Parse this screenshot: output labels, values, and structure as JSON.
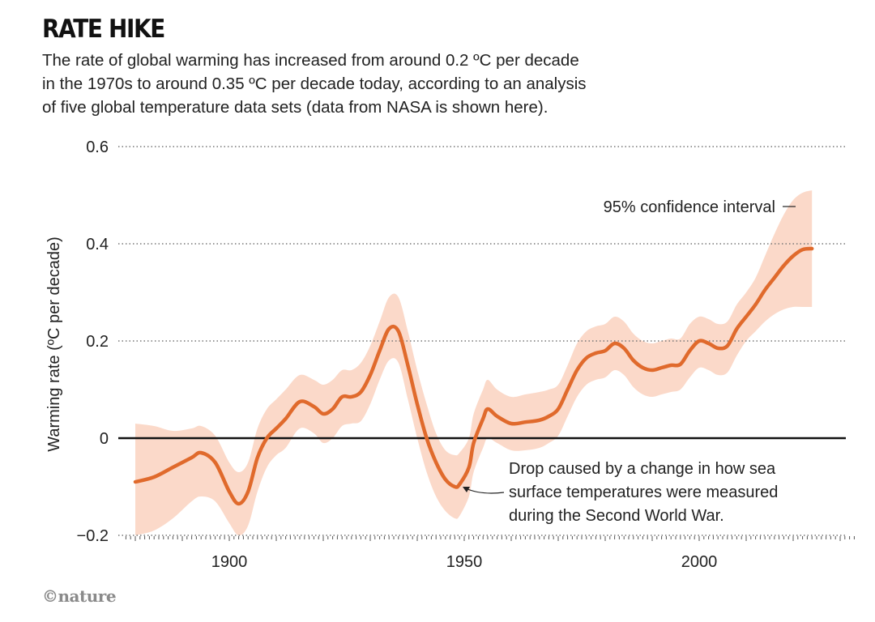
{
  "header": {
    "title": "RATE HIKE",
    "subtitle_lines": [
      "The rate of global warming has increased from around 0.2 ºC per decade",
      "in the 1970s to around 0.35 ºC per decade today, according to an analysis",
      "of five global temperature data sets (data from NASA is shown here)."
    ]
  },
  "footer": {
    "credit": "©nature"
  },
  "colors": {
    "line": "#e06a2c",
    "band": "#fbd9c9",
    "zero_line": "#111111",
    "grid": "#777777",
    "text": "#222222"
  },
  "chart_data": {
    "type": "line",
    "title": "RATE HIKE",
    "ylabel": "Warming rate (ºC per decade)",
    "xlabel": "",
    "xlim": [
      1880,
      2034
    ],
    "ylim": [
      -0.2,
      0.6
    ],
    "xticks": [
      1900,
      1950,
      2000
    ],
    "yticks": [
      -0.2,
      0,
      0.2,
      0.4,
      0.6
    ],
    "ytick_labels": [
      "−0.2",
      "0",
      "0.2",
      "0.4",
      "0.6"
    ],
    "grid": "horizontal dotted",
    "series": [
      {
        "x": [
          1880,
          1884,
          1888,
          1892,
          1894,
          1897,
          1900,
          1902,
          1904,
          1906,
          1908,
          1910,
          1912,
          1915,
          1918,
          1920,
          1922,
          1924,
          1926,
          1928,
          1930,
          1932,
          1934,
          1936,
          1938,
          1940,
          1942,
          1944,
          1946,
          1948,
          1949,
          1951,
          1952,
          1954,
          1955,
          1957,
          1960,
          1963,
          1966,
          1968,
          1970,
          1972,
          1974,
          1976,
          1978,
          1980,
          1982,
          1984,
          1986,
          1988,
          1990,
          1992,
          1994,
          1996,
          1998,
          2000,
          2002,
          2004,
          2006,
          2008,
          2010,
          2012,
          2014,
          2016,
          2018,
          2020,
          2022,
          2024
        ],
        "values": [
          -0.09,
          -0.08,
          -0.06,
          -0.04,
          -0.03,
          -0.05,
          -0.11,
          -0.135,
          -0.11,
          -0.04,
          0.0,
          0.02,
          0.04,
          0.075,
          0.065,
          0.05,
          0.06,
          0.085,
          0.085,
          0.095,
          0.13,
          0.18,
          0.225,
          0.22,
          0.15,
          0.07,
          0.0,
          -0.05,
          -0.085,
          -0.1,
          -0.095,
          -0.06,
          -0.01,
          0.04,
          0.06,
          0.045,
          0.03,
          0.033,
          0.037,
          0.045,
          0.06,
          0.1,
          0.14,
          0.165,
          0.175,
          0.18,
          0.195,
          0.185,
          0.16,
          0.145,
          0.14,
          0.145,
          0.15,
          0.152,
          0.18,
          0.2,
          0.195,
          0.185,
          0.19,
          0.225,
          0.25,
          0.275,
          0.305,
          0.33,
          0.355,
          0.375,
          0.388,
          0.39
        ]
      }
    ],
    "confidence_band": {
      "label": "95% confidence interval",
      "x": [
        1880,
        1884,
        1888,
        1892,
        1894,
        1897,
        1900,
        1902,
        1904,
        1906,
        1908,
        1910,
        1912,
        1915,
        1918,
        1920,
        1922,
        1924,
        1926,
        1928,
        1930,
        1932,
        1934,
        1936,
        1938,
        1940,
        1942,
        1944,
        1946,
        1948,
        1949,
        1951,
        1952,
        1954,
        1955,
        1957,
        1960,
        1963,
        1966,
        1968,
        1970,
        1972,
        1974,
        1976,
        1978,
        1980,
        1982,
        1984,
        1986,
        1988,
        1990,
        1992,
        1994,
        1996,
        1998,
        2000,
        2002,
        2004,
        2006,
        2008,
        2010,
        2012,
        2014,
        2016,
        2018,
        2020,
        2022,
        2024
      ],
      "upper": [
        0.03,
        0.025,
        0.015,
        0.02,
        0.025,
        0.005,
        -0.05,
        -0.07,
        -0.05,
        0.02,
        0.06,
        0.08,
        0.1,
        0.13,
        0.12,
        0.11,
        0.12,
        0.14,
        0.14,
        0.155,
        0.19,
        0.24,
        0.29,
        0.29,
        0.22,
        0.14,
        0.07,
        0.01,
        -0.025,
        -0.035,
        -0.03,
        0.0,
        0.05,
        0.1,
        0.12,
        0.1,
        0.085,
        0.09,
        0.095,
        0.1,
        0.11,
        0.15,
        0.195,
        0.22,
        0.23,
        0.235,
        0.25,
        0.24,
        0.215,
        0.2,
        0.195,
        0.2,
        0.205,
        0.205,
        0.235,
        0.25,
        0.245,
        0.235,
        0.24,
        0.275,
        0.3,
        0.33,
        0.375,
        0.42,
        0.46,
        0.49,
        0.505,
        0.51
      ],
      "lower": [
        -0.2,
        -0.19,
        -0.165,
        -0.13,
        -0.12,
        -0.13,
        -0.175,
        -0.2,
        -0.18,
        -0.11,
        -0.06,
        -0.035,
        -0.02,
        0.02,
        0.01,
        -0.01,
        0.0,
        0.025,
        0.03,
        0.035,
        0.07,
        0.12,
        0.16,
        0.155,
        0.08,
        0.0,
        -0.07,
        -0.12,
        -0.15,
        -0.165,
        -0.16,
        -0.12,
        -0.07,
        -0.02,
        0.0,
        -0.01,
        -0.025,
        -0.025,
        -0.02,
        -0.01,
        0.005,
        0.045,
        0.085,
        0.11,
        0.12,
        0.125,
        0.14,
        0.13,
        0.105,
        0.09,
        0.085,
        0.09,
        0.095,
        0.1,
        0.125,
        0.145,
        0.14,
        0.13,
        0.135,
        0.17,
        0.2,
        0.22,
        0.24,
        0.255,
        0.265,
        0.27,
        0.27,
        0.27
      ]
    },
    "annotations": [
      {
        "text_lines": [
          "Drop caused by a change in how sea",
          "surface temperatures were measured",
          "during the Second World War."
        ],
        "points_to": {
          "x": 1949,
          "y": -0.105
        }
      },
      {
        "text": "95% confidence interval"
      }
    ]
  }
}
